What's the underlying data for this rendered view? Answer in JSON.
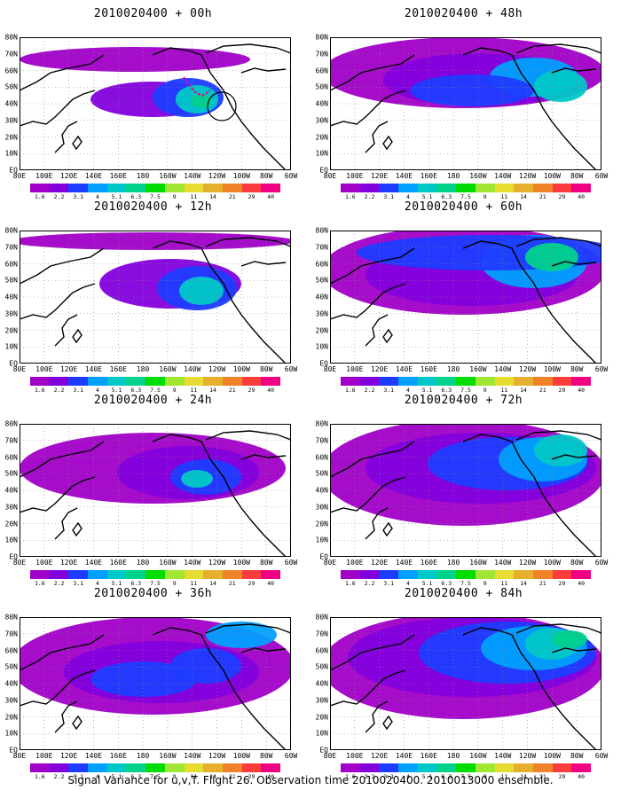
{
  "footer": "Signal Variance for u,v,T. Flight 26. Observation time 2010020400. 2010013000 ensemble.",
  "lat_labels": [
    "80N",
    "70N",
    "60N",
    "50N",
    "40N",
    "30N",
    "20N",
    "10N",
    "EQ"
  ],
  "lon_labels": [
    "80E",
    "100E",
    "120E",
    "140E",
    "160E",
    "180",
    "160W",
    "140W",
    "120W",
    "100W",
    "80W",
    "60W"
  ],
  "colorbar": {
    "labels": [
      "1.6",
      "2.2",
      "3.1",
      "4",
      "5.1",
      "6.3",
      "7.5",
      "9",
      "11",
      "14",
      "21",
      "29",
      "40"
    ],
    "colors": [
      "#a000c8",
      "#8200dc",
      "#1e3cff",
      "#00a0ff",
      "#00c8c8",
      "#00d28c",
      "#00dc00",
      "#a0e632",
      "#e6dc32",
      "#e6af2d",
      "#f08228",
      "#fa3c3c",
      "#f00082"
    ]
  },
  "panels": [
    {
      "title": "2010020400 + 00h"
    },
    {
      "title": "2010020400 + 48h"
    },
    {
      "title": "2010020400 + 12h"
    },
    {
      "title": "2010020400 + 60h"
    },
    {
      "title": "2010020400 + 24h"
    },
    {
      "title": "2010020400 + 72h"
    },
    {
      "title": "2010020400 + 36h"
    },
    {
      "title": "2010020400 + 84h"
    }
  ]
}
